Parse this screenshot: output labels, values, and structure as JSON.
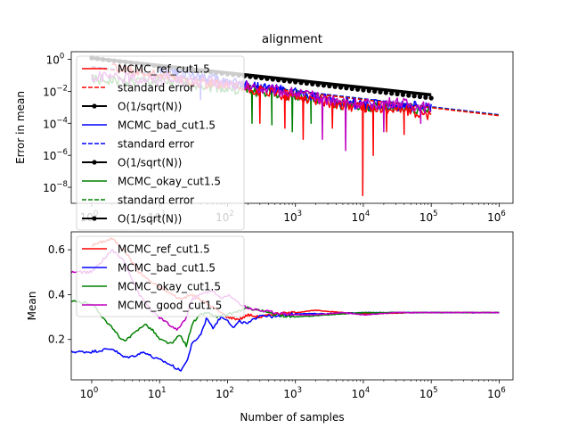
{
  "colors": {
    "ref": "#ff0000",
    "bad": "#0000ff",
    "okay": "#008000",
    "good": "#bf00bf",
    "ref_line": "#000000"
  },
  "chart_data": [
    {
      "type": "line",
      "title": "alignment",
      "xlabel": "",
      "ylabel": "Error in mean",
      "xscale": "log",
      "yscale": "log",
      "xlim": [
        0.5,
        1600000
      ],
      "ylim": [
        1e-09,
        3
      ],
      "xticks": [
        {
          "base": "10",
          "exp": "0"
        },
        {
          "base": "10",
          "exp": "1"
        },
        {
          "base": "10",
          "exp": "2"
        },
        {
          "base": "10",
          "exp": "3"
        },
        {
          "base": "10",
          "exp": "4"
        },
        {
          "base": "10",
          "exp": "5"
        },
        {
          "base": "10",
          "exp": "6"
        }
      ],
      "yticks": [
        {
          "base": "10",
          "exp": "0"
        },
        {
          "base": "10",
          "exp": "−2"
        },
        {
          "base": "10",
          "exp": "−4"
        },
        {
          "base": "10",
          "exp": "−6"
        },
        {
          "base": "10",
          "exp": "−8"
        }
      ],
      "legend": {
        "placement": "top-left",
        "entries": [
          {
            "label": "MCMC_ref_cut1.5",
            "color": "#ff0000",
            "style": "solid"
          },
          {
            "label": "standard error",
            "color": "#ff0000",
            "style": "dashed"
          },
          {
            "label": "O(1/sqrt(N))",
            "color": "#000000",
            "style": "marker"
          },
          {
            "label": "MCMC_bad_cut1.5",
            "color": "#0000ff",
            "style": "solid"
          },
          {
            "label": "standard error",
            "color": "#0000ff",
            "style": "dashed"
          },
          {
            "label": "O(1/sqrt(N))",
            "color": "#000000",
            "style": "marker"
          },
          {
            "label": "MCMC_okay_cut1.5",
            "color": "#008000",
            "style": "solid"
          },
          {
            "label": "standard error",
            "color": "#008000",
            "style": "dashed"
          },
          {
            "label": "O(1/sqrt(N))",
            "color": "#000000",
            "style": "marker"
          }
        ]
      },
      "series": [
        {
          "name": "MCMC_ref_cut1.5",
          "color": "#ff0000",
          "x": [
            2,
            10,
            30,
            100,
            300,
            1000,
            3000,
            10000,
            30000,
            100000
          ],
          "y": [
            0.3,
            0.1,
            0.04,
            0.02,
            0.01,
            0.005,
            0.002,
            0.001,
            0.0008,
            0.0003
          ],
          "dips": [
            [
              300,
              0.0001
            ],
            [
              700,
              5e-05
            ],
            [
              1300,
              1e-05
            ],
            [
              3500,
              5e-05
            ],
            [
              9800,
              3e-09
            ],
            [
              14000,
              1e-06
            ],
            [
              22000,
              3e-05
            ],
            [
              40000,
              2e-05
            ]
          ]
        },
        {
          "name": "MCMC_bad_cut1.5",
          "color": "#0000ff",
          "x": [
            10,
            40,
            100,
            300,
            1000,
            3000,
            10000,
            100000
          ],
          "y": [
            0.2,
            0.1,
            0.04,
            0.02,
            0.008,
            0.003,
            0.0015,
            0.001
          ],
          "dips": [
            [
              40,
              0.003
            ]
          ]
        },
        {
          "name": "MCMC_okay_cut1.5",
          "color": "#008000",
          "x": [
            1,
            10,
            30,
            100,
            300,
            1000,
            3000,
            10000,
            100000
          ],
          "y": [
            0.05,
            0.04,
            0.03,
            0.015,
            0.01,
            0.006,
            0.002,
            0.001,
            0.0008
          ],
          "dips": [
            [
              230,
              0.0001
            ],
            [
              450,
              8e-05
            ],
            [
              900,
              3e-05
            ],
            [
              1700,
              0.0001
            ]
          ]
        },
        {
          "name": "MCMC_good_cut1.5",
          "color": "#bf00bf",
          "x": [
            1,
            10,
            100,
            300,
            1000,
            3000,
            10000,
            30000,
            100000
          ],
          "y": [
            0.08,
            0.06,
            0.03,
            0.015,
            0.008,
            0.003,
            0.0015,
            0.002,
            0.0008
          ],
          "dips": [
            [
              2500,
              1e-05
            ],
            [
              5500,
              2e-06
            ],
            [
              20000,
              3e-05
            ],
            [
              70000,
              0.0001
            ]
          ]
        },
        {
          "name": "standard error",
          "color": "#ff0000",
          "style": "dashed",
          "x": [
            1,
            1000000
          ],
          "y": [
            0.3,
            0.0003
          ]
        },
        {
          "name": "O(1/sqrt(N))",
          "color": "#000000",
          "style": "marker",
          "x": [
            1,
            100000
          ],
          "y": [
            1.2,
            0.006
          ]
        }
      ]
    },
    {
      "type": "line",
      "title": "",
      "xlabel": "Number of samples",
      "ylabel": "Mean",
      "xscale": "log",
      "xlim": [
        0.5,
        1600000
      ],
      "ylim": [
        0.02,
        0.68
      ],
      "xticks": [
        {
          "base": "10",
          "exp": "0"
        },
        {
          "base": "10",
          "exp": "1"
        },
        {
          "base": "10",
          "exp": "2"
        },
        {
          "base": "10",
          "exp": "3"
        },
        {
          "base": "10",
          "exp": "4"
        },
        {
          "base": "10",
          "exp": "5"
        },
        {
          "base": "10",
          "exp": "6"
        }
      ],
      "yticks": [
        {
          "value": 0.2,
          "label": "0.2"
        },
        {
          "value": 0.4,
          "label": "0.4"
        },
        {
          "value": 0.6,
          "label": "0.6"
        }
      ],
      "legend": {
        "placement": "top-left",
        "entries": [
          {
            "label": "MCMC_ref_cut1.5",
            "color": "#ff0000"
          },
          {
            "label": "MCMC_bad_cut1.5",
            "color": "#0000ff"
          },
          {
            "label": "MCMC_okay_cut1.5",
            "color": "#008000"
          },
          {
            "label": "MCMC_good_cut1.5",
            "color": "#bf00bf"
          }
        ]
      },
      "series": [
        {
          "name": "MCMC_ref_cut1.5",
          "color": "#ff0000",
          "x": [
            1,
            2,
            3,
            5,
            8,
            12,
            20,
            30,
            50,
            80,
            100,
            150,
            200,
            300,
            500,
            1000,
            2000,
            5000,
            10000,
            100000,
            1000000
          ],
          "y": [
            0.62,
            0.65,
            0.6,
            0.5,
            0.45,
            0.42,
            0.38,
            0.4,
            0.36,
            0.32,
            0.3,
            0.29,
            0.31,
            0.3,
            0.315,
            0.32,
            0.33,
            0.32,
            0.315,
            0.32,
            0.32
          ]
        },
        {
          "name": "MCMC_bad_cut1.5",
          "color": "#0000ff",
          "x": [
            0.5,
            1,
            2,
            3,
            4,
            6,
            8,
            12,
            16,
            20,
            25,
            30,
            40,
            50,
            60,
            80,
            100,
            120,
            150,
            200,
            300,
            500,
            1000,
            3000,
            10000,
            100000,
            1000000
          ],
          "y": [
            0.145,
            0.145,
            0.16,
            0.12,
            0.125,
            0.145,
            0.12,
            0.1,
            0.08,
            0.06,
            0.1,
            0.18,
            0.22,
            0.3,
            0.25,
            0.3,
            0.29,
            0.25,
            0.28,
            0.27,
            0.31,
            0.3,
            0.315,
            0.315,
            0.32,
            0.32,
            0.32
          ]
        },
        {
          "name": "MCMC_okay_cut1.5",
          "color": "#008000",
          "x": [
            0.5,
            1,
            2,
            3,
            4,
            6,
            8,
            10,
            15,
            20,
            25,
            30,
            40,
            50,
            70,
            100,
            200,
            300,
            500,
            1000,
            3000,
            10000,
            100000,
            1000000
          ],
          "y": [
            0.37,
            0.36,
            0.25,
            0.19,
            0.22,
            0.27,
            0.24,
            0.2,
            0.18,
            0.22,
            0.17,
            0.27,
            0.31,
            0.32,
            0.3,
            0.31,
            0.34,
            0.33,
            0.31,
            0.3,
            0.31,
            0.32,
            0.32,
            0.32
          ]
        },
        {
          "name": "MCMC_good_cut1.5",
          "color": "#bf00bf",
          "x": [
            0.5,
            1,
            2,
            3,
            5,
            8,
            12,
            18,
            25,
            30,
            40,
            60,
            80,
            100,
            150,
            200,
            300,
            500,
            1000,
            2000,
            5000,
            10000,
            30000,
            100000,
            1000000
          ],
          "y": [
            0.5,
            0.5,
            0.6,
            0.55,
            0.4,
            0.32,
            0.28,
            0.24,
            0.3,
            0.38,
            0.4,
            0.42,
            0.38,
            0.4,
            0.36,
            0.34,
            0.33,
            0.32,
            0.31,
            0.31,
            0.32,
            0.31,
            0.32,
            0.32,
            0.32
          ]
        }
      ]
    }
  ]
}
